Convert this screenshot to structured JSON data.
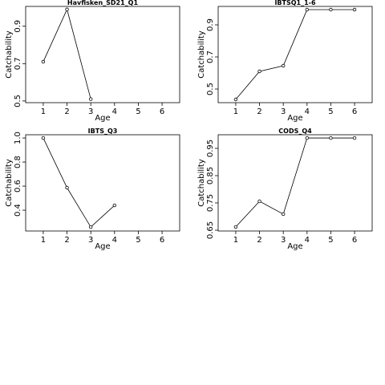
{
  "chart_data": [
    {
      "type": "line",
      "title": "Havfisken_SD21_Q1",
      "xlabel": "Age",
      "ylabel": "Catchability",
      "x": [
        1,
        2,
        3
      ],
      "values": [
        0.71,
        0.99,
        0.51
      ],
      "xlim": [
        0.26,
        6.74
      ],
      "xticks": [
        1,
        2,
        3,
        4,
        5,
        6
      ],
      "ylim": [
        0.491,
        1.006
      ],
      "yticks": [
        0.5,
        0.7,
        0.9
      ],
      "color": "#000000"
    },
    {
      "type": "line",
      "title": "IBTSQ1_1-6",
      "xlabel": "Age",
      "ylabel": "Catchability",
      "x": [
        1,
        2,
        3,
        4,
        5,
        6
      ],
      "values": [
        0.435,
        0.61,
        0.645,
        0.995,
        0.995,
        0.995
      ],
      "xlim": [
        0.26,
        6.74
      ],
      "xticks": [
        1,
        2,
        3,
        4,
        5,
        6
      ],
      "ylim": [
        0.415,
        1.015
      ],
      "yticks": [
        0.5,
        0.7,
        0.9
      ],
      "color": "#000000"
    },
    {
      "type": "line",
      "title": "IBTS_Q3",
      "xlabel": "Age",
      "ylabel": "Catchability",
      "x": [
        1,
        2,
        3,
        4
      ],
      "values": [
        1.0,
        0.587,
        0.26,
        0.44
      ],
      "xlim": [
        0.26,
        6.74
      ],
      "xticks": [
        1,
        2,
        3,
        4,
        5,
        6
      ],
      "ylim": [
        0.227,
        1.027
      ],
      "yticks": [
        0.4,
        0.6,
        0.8,
        {
          "value": 1.0,
          "label": "1.0"
        }
      ],
      "color": "#000000"
    },
    {
      "type": "line",
      "title": "CODS_Q4",
      "xlabel": "Age",
      "ylabel": "Catchability",
      "x": [
        1,
        2,
        3,
        4,
        5,
        6
      ],
      "values": [
        0.662,
        0.756,
        0.709,
        0.988,
        0.988,
        0.988
      ],
      "xlim": [
        0.26,
        6.74
      ],
      "xticks": [
        1,
        2,
        3,
        4,
        5,
        6
      ],
      "ylim": [
        0.647,
        1.0
      ],
      "yticks": [
        0.65,
        0.75,
        0.85,
        0.95
      ],
      "color": "#000000"
    }
  ]
}
